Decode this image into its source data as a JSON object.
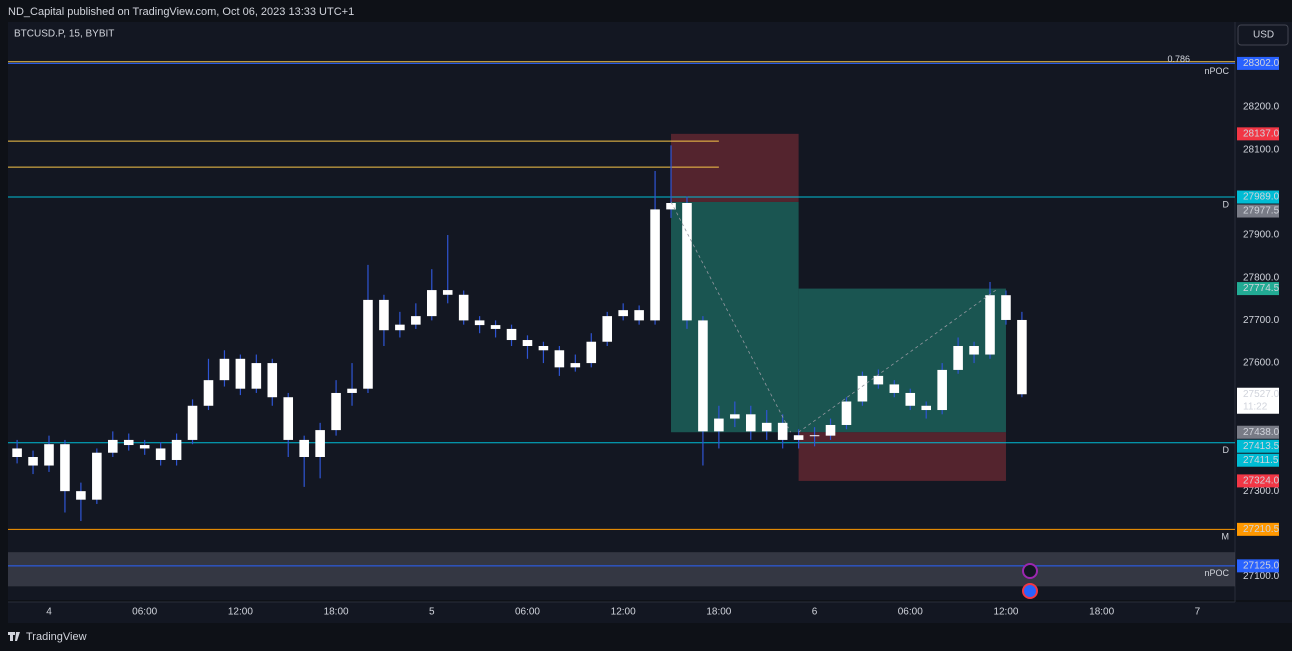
{
  "chart_data": {
    "type": "candlestick",
    "title": "ND_Capital published on TradingView.com, Oct 06, 2023 13:33 UTC+1",
    "symbol": "BTCUSD.P, 15, BYBIT",
    "currency": "USD",
    "brand": "TradingView",
    "up_color": "#ffffff",
    "down_color": "#ffffff",
    "wick_color": "#2f55d4",
    "xlim": [
      -2.57,
      74.36
    ],
    "ylim": [
      27045,
      28399
    ],
    "xticks": [
      {
        "value": 0,
        "label": "4"
      },
      {
        "value": 6,
        "label": "06:00"
      },
      {
        "value": 12,
        "label": "12:00"
      },
      {
        "value": 18,
        "label": "18:00"
      },
      {
        "value": 24,
        "label": "5"
      },
      {
        "value": 30,
        "label": "06:00"
      },
      {
        "value": 36,
        "label": "12:00"
      },
      {
        "value": 42,
        "label": "18:00"
      },
      {
        "value": 48,
        "label": "6"
      },
      {
        "value": 54,
        "label": "06:00"
      },
      {
        "value": 60,
        "label": "12:00"
      },
      {
        "value": 66,
        "label": "18:00"
      },
      {
        "value": 72,
        "label": "7"
      }
    ],
    "yticks": [
      {
        "value": 28200,
        "label": "28200.0"
      },
      {
        "value": 28100,
        "label": "28100.0"
      },
      {
        "value": 27900,
        "label": "27900.0"
      },
      {
        "value": 27800,
        "label": "27800.0"
      },
      {
        "value": 27700,
        "label": "27700.0"
      },
      {
        "value": 27600,
        "label": "27600.0"
      },
      {
        "value": 27300,
        "label": "27300.0"
      },
      {
        "value": 27100,
        "label": "27100.0"
      }
    ],
    "x": [
      -2,
      -1,
      0,
      1,
      2,
      3,
      4,
      5,
      6,
      7,
      8,
      9,
      10,
      11,
      12,
      13,
      14,
      15,
      16,
      17,
      18,
      19,
      20,
      21,
      22,
      23,
      24,
      25,
      26,
      27,
      28,
      29,
      30,
      31,
      32,
      33,
      34,
      35,
      36,
      37,
      38,
      39,
      40,
      41,
      42,
      43,
      44,
      45,
      46,
      47,
      48,
      49,
      50,
      51,
      52,
      53,
      54,
      55,
      56,
      57,
      58,
      59,
      60,
      61
    ],
    "open": [
      27400,
      27380,
      27360,
      27410,
      27300,
      27280,
      27390,
      27420,
      27408,
      27400,
      27373,
      27420,
      27500,
      27560,
      27610,
      27540,
      27600,
      27520,
      27420,
      27380,
      27443,
      27530,
      27540,
      27748,
      27677,
      27690,
      27710,
      27771,
      27760,
      27700,
      27689,
      27680,
      27654,
      27640,
      27630,
      27590,
      27600,
      27650,
      27710,
      27724,
      27700,
      27960,
      27975,
      27700,
      27440,
      27470,
      27480,
      27440,
      27460,
      27420,
      27431,
      27430,
      27455,
      27510,
      27570,
      27550,
      27530,
      27500,
      27490,
      27584,
      27640,
      27620,
      27759,
      27701
    ],
    "high": [
      27420,
      27395,
      27430,
      27420,
      27320,
      27400,
      27440,
      27435,
      27420,
      27415,
      27435,
      27515,
      27610,
      27630,
      27620,
      27620,
      27610,
      27530,
      27430,
      27460,
      27560,
      27600,
      27830,
      27760,
      27720,
      27740,
      27820,
      27900,
      27770,
      27710,
      27700,
      27690,
      27665,
      27650,
      27640,
      27620,
      27670,
      27720,
      27740,
      27735,
      28050,
      28110,
      27990,
      27710,
      27500,
      27510,
      27500,
      27490,
      27480,
      27445,
      27450,
      27470,
      27520,
      27580,
      27585,
      27560,
      27540,
      27510,
      27600,
      27660,
      27650,
      27790,
      27770,
      27720
    ],
    "low": [
      27365,
      27340,
      27345,
      27250,
      27230,
      27270,
      27380,
      27395,
      27385,
      27360,
      27360,
      27410,
      27490,
      27545,
      27525,
      27530,
      27500,
      27380,
      27310,
      27330,
      27430,
      27500,
      27530,
      27640,
      27660,
      27680,
      27700,
      27740,
      27690,
      27670,
      27660,
      27640,
      27610,
      27600,
      27570,
      27580,
      27590,
      27640,
      27700,
      27690,
      27690,
      27940,
      27680,
      27360,
      27400,
      27450,
      27420,
      27420,
      27400,
      27400,
      27405,
      27420,
      27445,
      27500,
      27540,
      27520,
      27490,
      27470,
      27480,
      27575,
      27600,
      27610,
      27690,
      27520
    ],
    "close": [
      27380,
      27360,
      27410,
      27300,
      27280,
      27390,
      27420,
      27408,
      27400,
      27373,
      27420,
      27500,
      27560,
      27610,
      27540,
      27600,
      27520,
      27420,
      27380,
      27443,
      27530,
      27540,
      27748,
      27677,
      27690,
      27710,
      27771,
      27760,
      27700,
      27689,
      27680,
      27654,
      27640,
      27630,
      27590,
      27600,
      27650,
      27710,
      27724,
      27700,
      27960,
      27975,
      27700,
      27440,
      27470,
      27480,
      27440,
      27460,
      27420,
      27431,
      27430,
      27455,
      27510,
      27570,
      27550,
      27530,
      27500,
      27490,
      27584,
      27640,
      27620,
      27759,
      27701,
      27527
    ],
    "zone": {
      "low": 27077,
      "high": 27157,
      "color": "#434651"
    },
    "levels": [
      {
        "value": 28302,
        "color": "#2962ff",
        "label": "nPOC"
      },
      {
        "value": 28306,
        "color": "#f7c548",
        "label": "0.786"
      },
      {
        "value": 28120,
        "color": "#f7c548",
        "x_end": 42
      },
      {
        "value": 28059,
        "color": "#f7c548",
        "x_end": 42
      },
      {
        "value": 27989,
        "color": "#00bcd4",
        "label": "D"
      },
      {
        "value": 27413.5,
        "color": "#00bcd4",
        "label": "D"
      },
      {
        "value": 27210.5,
        "color": "#ff9800",
        "label": "M"
      },
      {
        "value": 27125,
        "color": "#2962ff",
        "label": "nPOC"
      }
    ],
    "positions": [
      {
        "x_start": 39,
        "x_end": 47,
        "entry": 27977.5,
        "stop": 28137,
        "target": 27438
      },
      {
        "x_start": 47,
        "x_end": 60,
        "entry": 27438,
        "stop": 27324,
        "target": 27774.5
      }
    ],
    "profit_color": "#1d6b62",
    "loss_color": "#6b2a33",
    "price_labels": [
      {
        "value": 28302,
        "label": "28302.0",
        "color": "#2962ff"
      },
      {
        "value": 28137,
        "label": "28137.0",
        "color": "#f23645"
      },
      {
        "value": 27989,
        "label": "27989.0",
        "color": "#00bcd4"
      },
      {
        "value": 27977.5,
        "label": "27977.5",
        "color": "#787b86"
      },
      {
        "value": 27774.5,
        "label": "27774.5",
        "color": "#22ab94"
      },
      {
        "value": 27527,
        "label": "27527.0",
        "color": "#ffffff",
        "countdown": "11:22"
      },
      {
        "value": 27438,
        "label": "27438.0",
        "color": "#787b86"
      },
      {
        "value": 27413.5,
        "label": "27413.5",
        "color": "#00bcd4"
      },
      {
        "value": 27411.5,
        "label": "27411.5",
        "color": "#00bcd4"
      },
      {
        "value": 27324,
        "label": "27324.0",
        "color": "#f23645"
      },
      {
        "value": 27210.5,
        "label": "27210.5",
        "color": "#ff9800"
      },
      {
        "value": 27125,
        "label": "27125.0",
        "color": "#2962ff"
      }
    ]
  }
}
